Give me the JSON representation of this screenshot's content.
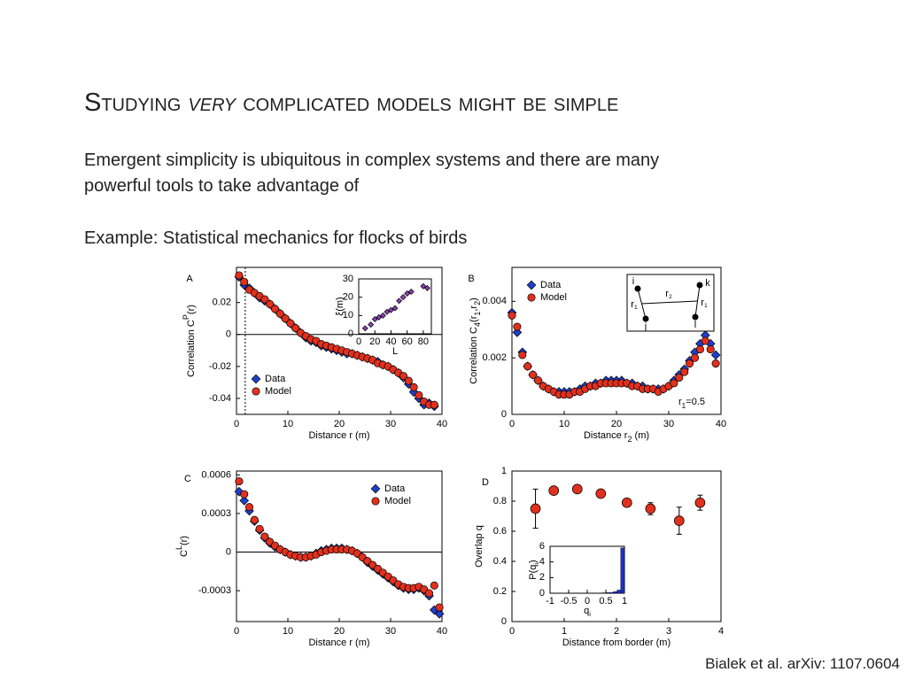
{
  "title_parts": [
    "Studying ",
    "very",
    " complicated models might be simple"
  ],
  "lines": [
    "Emergent simplicity is ubiquitous in complex systems and there are many",
    "powerful tools to take advantage of",
    "Example: Statistical mechanics for flocks of birds"
  ],
  "citation": "Bialek et al. arXiv: 1107.0604",
  "chart_data": [
    {
      "type": "scatter",
      "label": "A",
      "x": [
        0.5,
        1.5,
        2.5,
        3.5,
        4.5,
        5.5,
        6.5,
        7.5,
        8.5,
        9.5,
        10.5,
        11.5,
        12.5,
        13.5,
        14.5,
        15.5,
        16.5,
        17.5,
        18.5,
        19.5,
        20.5,
        21.5,
        22.5,
        23.5,
        24.5,
        25.5,
        26.5,
        27.5,
        28.5,
        29.5,
        30.5,
        31.5,
        32.5,
        33.5,
        34.5,
        35.5,
        36.5,
        37.5,
        38.5
      ],
      "series": [
        {
          "name": "Data",
          "color": "#1f3fcc",
          "marker": "diamond",
          "values": [
            0.036,
            0.031,
            0.029,
            0.026,
            0.023,
            0.021,
            0.019,
            0.016,
            0.013,
            0.01,
            0.007,
            0.004,
            0.001,
            -0.002,
            -0.004,
            -0.005,
            -0.007,
            -0.008,
            -0.009,
            -0.01,
            -0.011,
            -0.012,
            -0.012,
            -0.013,
            -0.014,
            -0.015,
            -0.016,
            -0.017,
            -0.019,
            -0.02,
            -0.022,
            -0.024,
            -0.027,
            -0.031,
            -0.036,
            -0.04,
            -0.044,
            -0.043,
            -0.045
          ]
        },
        {
          "name": "Model",
          "color": "#e0301e",
          "marker": "circle",
          "values": [
            0.037,
            0.033,
            0.028,
            0.026,
            0.024,
            0.022,
            0.019,
            0.016,
            0.013,
            0.01,
            0.007,
            0.004,
            0.001,
            -0.001,
            -0.003,
            -0.004,
            -0.006,
            -0.007,
            -0.008,
            -0.009,
            -0.01,
            -0.011,
            -0.012,
            -0.013,
            -0.014,
            -0.015,
            -0.016,
            -0.018,
            -0.019,
            -0.02,
            -0.022,
            -0.024,
            -0.026,
            -0.029,
            -0.033,
            -0.038,
            -0.042,
            -0.044,
            -0.044
          ]
        }
      ],
      "xlim": [
        0,
        40
      ],
      "ylim": [
        -0.05,
        0.042
      ],
      "xticks": [
        0,
        10,
        20,
        30,
        40
      ],
      "yticks": [
        -0.04,
        -0.02,
        0,
        0.02
      ],
      "x_label": [
        {
          "text": "Distance r (m)"
        }
      ],
      "y_label": [
        {
          "text": "Correlation C"
        },
        {
          "text": "P",
          "shift": "sup"
        },
        {
          "text": "(r)"
        }
      ],
      "zero_line": true,
      "vline": 1.7,
      "legend": "lower left"
    },
    {
      "type": "scatter",
      "label": "B",
      "x": [
        0,
        1,
        2,
        3,
        4,
        5,
        6,
        7,
        8,
        9,
        10,
        11,
        12,
        13,
        14,
        15,
        16,
        17,
        18,
        19,
        20,
        21,
        22,
        23,
        24,
        25,
        26,
        27,
        28,
        29,
        30,
        31,
        32,
        33,
        34,
        35,
        36,
        37,
        38,
        39
      ],
      "series": [
        {
          "name": "Data",
          "color": "#1f3fcc",
          "marker": "diamond",
          "values": [
            0.0036,
            0.0029,
            0.0022,
            0.0017,
            0.0014,
            0.0012,
            0.001,
            0.0009,
            0.0008,
            0.0008,
            0.0008,
            0.0008,
            0.0008,
            0.0009,
            0.001,
            0.001,
            0.0011,
            0.0011,
            0.0012,
            0.0012,
            0.0012,
            0.0012,
            0.0011,
            0.0011,
            0.001,
            0.001,
            0.0009,
            0.0009,
            0.0009,
            0.0009,
            0.001,
            0.0012,
            0.0014,
            0.0016,
            0.0019,
            0.0022,
            0.0025,
            0.0028,
            0.0025,
            0.0021
          ]
        },
        {
          "name": "Model",
          "color": "#e0301e",
          "marker": "circle",
          "values": [
            0.0035,
            0.0031,
            0.0021,
            0.0017,
            0.0014,
            0.0012,
            0.001,
            0.0009,
            0.0008,
            0.0007,
            0.0007,
            0.0007,
            0.0008,
            0.0008,
            0.0009,
            0.001,
            0.001,
            0.0011,
            0.0011,
            0.0011,
            0.0011,
            0.0011,
            0.0011,
            0.001,
            0.001,
            0.0009,
            0.0009,
            0.0009,
            0.0008,
            0.0009,
            0.001,
            0.0011,
            0.0013,
            0.0015,
            0.0018,
            0.002,
            0.0023,
            0.0026,
            0.0023,
            0.0018
          ]
        }
      ],
      "xlim": [
        0,
        40
      ],
      "ylim": [
        0,
        0.0052
      ],
      "xticks": [
        0,
        10,
        20,
        30,
        40
      ],
      "yticks": [
        0,
        0.002,
        0.004
      ],
      "x_label": [
        {
          "text": "Distance r"
        },
        {
          "text": "2",
          "shift": "sub"
        },
        {
          "text": " (m)"
        }
      ],
      "y_label": [
        {
          "text": "Correlation C"
        },
        {
          "text": "4",
          "shift": "sub"
        },
        {
          "text": "(r"
        },
        {
          "text": "1",
          "shift": "sub"
        },
        {
          "text": ",r"
        },
        {
          "text": "2",
          "shift": "sub"
        },
        {
          "text": ")"
        }
      ],
      "legend": "upper left",
      "annotation": [
        {
          "text": "r"
        },
        {
          "text": "1",
          "shift": "sub"
        },
        {
          "text": "=0.5"
        }
      ],
      "diagram": {
        "nodes": [
          "i",
          "k",
          "j",
          "l"
        ],
        "edges": [
          [
            {
              "text": "r"
            },
            {
              "text": "1",
              "shift": "sub"
            }
          ],
          [
            {
              "text": "r"
            },
            {
              "text": "1",
              "shift": "sub"
            }
          ],
          [
            {
              "text": "r"
            },
            {
              "text": "2",
              "shift": "sub"
            }
          ]
        ]
      }
    },
    {
      "type": "scatter",
      "label": "C",
      "x": [
        0.5,
        1.5,
        2.5,
        3.5,
        4.5,
        5.5,
        6.5,
        7.5,
        8.5,
        9.5,
        10.5,
        11.5,
        12.5,
        13.5,
        14.5,
        15.5,
        16.5,
        17.5,
        18.5,
        19.5,
        20.5,
        21.5,
        22.5,
        23.5,
        24.5,
        25.5,
        26.5,
        27.5,
        28.5,
        29.5,
        30.5,
        31.5,
        32.5,
        33.5,
        34.5,
        35.5,
        36.5,
        37.5,
        38.5,
        39.5
      ],
      "series": [
        {
          "name": "Data",
          "color": "#1f3fcc",
          "marker": "diamond",
          "values": [
            0.00047,
            0.0004,
            0.00032,
            0.00024,
            0.00017,
            0.00011,
            7e-05,
            4e-05,
            2e-05,
            0.0,
            -2e-05,
            -3e-05,
            -4e-05,
            -4e-05,
            -3e-05,
            -1e-05,
            1e-05,
            2e-05,
            3e-05,
            3e-05,
            3e-05,
            2e-05,
            1e-05,
            -1e-05,
            -4e-05,
            -8e-05,
            -0.00011,
            -0.00014,
            -0.00017,
            -0.0002,
            -0.00023,
            -0.00026,
            -0.00028,
            -0.00029,
            -0.00029,
            -0.00028,
            -0.0003,
            -0.00034,
            -0.00045,
            -0.00048
          ]
        },
        {
          "name": "Model",
          "color": "#e0301e",
          "marker": "circle",
          "values": [
            0.00055,
            0.00045,
            0.00035,
            0.00025,
            0.00018,
            0.00012,
            8e-05,
            5e-05,
            2e-05,
            0.0,
            -2e-05,
            -3e-05,
            -4e-05,
            -4e-05,
            -3e-05,
            -2e-05,
            0.0,
            1e-05,
            2e-05,
            2e-05,
            2e-05,
            2e-05,
            1e-05,
            -1e-05,
            -4e-05,
            -7e-05,
            -0.0001,
            -0.00013,
            -0.00016,
            -0.00019,
            -0.00022,
            -0.00025,
            -0.00027,
            -0.00028,
            -0.00028,
            -0.00027,
            -0.00029,
            -0.00032,
            -0.00026,
            -0.00043
          ]
        }
      ],
      "xlim": [
        0,
        40
      ],
      "ylim": [
        -0.00054,
        0.00063
      ],
      "xticks": [
        0,
        10,
        20,
        30,
        40
      ],
      "yticks": [
        -0.0003,
        0,
        0.0003,
        0.0006
      ],
      "x_label": [
        {
          "text": "Distance r (m)"
        }
      ],
      "y_label": [
        {
          "text": "C"
        },
        {
          "text": "L",
          "shift": "sup"
        },
        {
          "text": "(r)"
        }
      ],
      "zero_line": true,
      "legend": "upper right"
    },
    {
      "type": "errorbar",
      "label": "D",
      "x": [
        0.45,
        0.8,
        1.25,
        1.7,
        2.2,
        2.65,
        3.2,
        3.6
      ],
      "series": [
        {
          "color": "#e0301e",
          "marker": "circle",
          "values": [
            0.75,
            0.87,
            0.88,
            0.85,
            0.79,
            0.75,
            0.67,
            0.79
          ],
          "errors": [
            0.13,
            0.02,
            0.02,
            0.02,
            0.02,
            0.04,
            0.09,
            0.05
          ]
        }
      ],
      "xlim": [
        0,
        4
      ],
      "ylim": [
        0,
        1
      ],
      "xticks": [
        0,
        1,
        2,
        3,
        4
      ],
      "yticks": [
        0,
        0.2,
        0.4,
        0.6,
        0.8,
        1
      ],
      "x_label": [
        {
          "text": "Distance from border (m)"
        }
      ],
      "y_label": [
        {
          "text": "Overlap q"
        }
      ]
    },
    {
      "type": "scatter",
      "x": [
        8,
        15,
        20,
        25,
        30,
        35,
        40,
        45,
        50,
        55,
        60,
        65,
        80,
        85
      ],
      "series": [
        {
          "color": "#8a3fb0",
          "marker": "diamond",
          "values": [
            3,
            5,
            8,
            9,
            10,
            12,
            13,
            14,
            18,
            20,
            22,
            23,
            26,
            25
          ]
        }
      ],
      "xlim": [
        0,
        90
      ],
      "ylim": [
        0,
        30
      ],
      "xticks": [
        0,
        20,
        40,
        60,
        80
      ],
      "yticks": [
        0,
        10,
        20,
        30
      ],
      "x_label": [
        {
          "text": "L"
        }
      ],
      "y_label": [
        {
          "text": "ξ(m)"
        }
      ]
    },
    {
      "type": "histogram",
      "bins": [
        -1,
        -0.9,
        -0.8,
        -0.7,
        -0.6,
        -0.5,
        -0.4,
        -0.3,
        -0.2,
        -0.1,
        0,
        0.1,
        0.2,
        0.3,
        0.4,
        0.5,
        0.6,
        0.7,
        0.8,
        0.9,
        1
      ],
      "counts": [
        0,
        0,
        0,
        0,
        0,
        0,
        0,
        0,
        0,
        0,
        0,
        0,
        0.02,
        0.03,
        0.05,
        0.08,
        0.1,
        0.2,
        0.4,
        5.8
      ],
      "color": "#1a2fd0",
      "xlim": [
        -1,
        1
      ],
      "ylim": [
        0,
        6
      ],
      "xticks": [
        -1,
        -0.5,
        0,
        0.5,
        1
      ],
      "yticks": [
        0,
        2,
        4,
        6
      ],
      "x_label": [
        {
          "text": "q"
        },
        {
          "text": "i",
          "shift": "sub"
        }
      ],
      "y_label": [
        {
          "text": "P(q"
        },
        {
          "text": "i",
          "shift": "sub"
        },
        {
          "text": ")"
        }
      ]
    }
  ]
}
